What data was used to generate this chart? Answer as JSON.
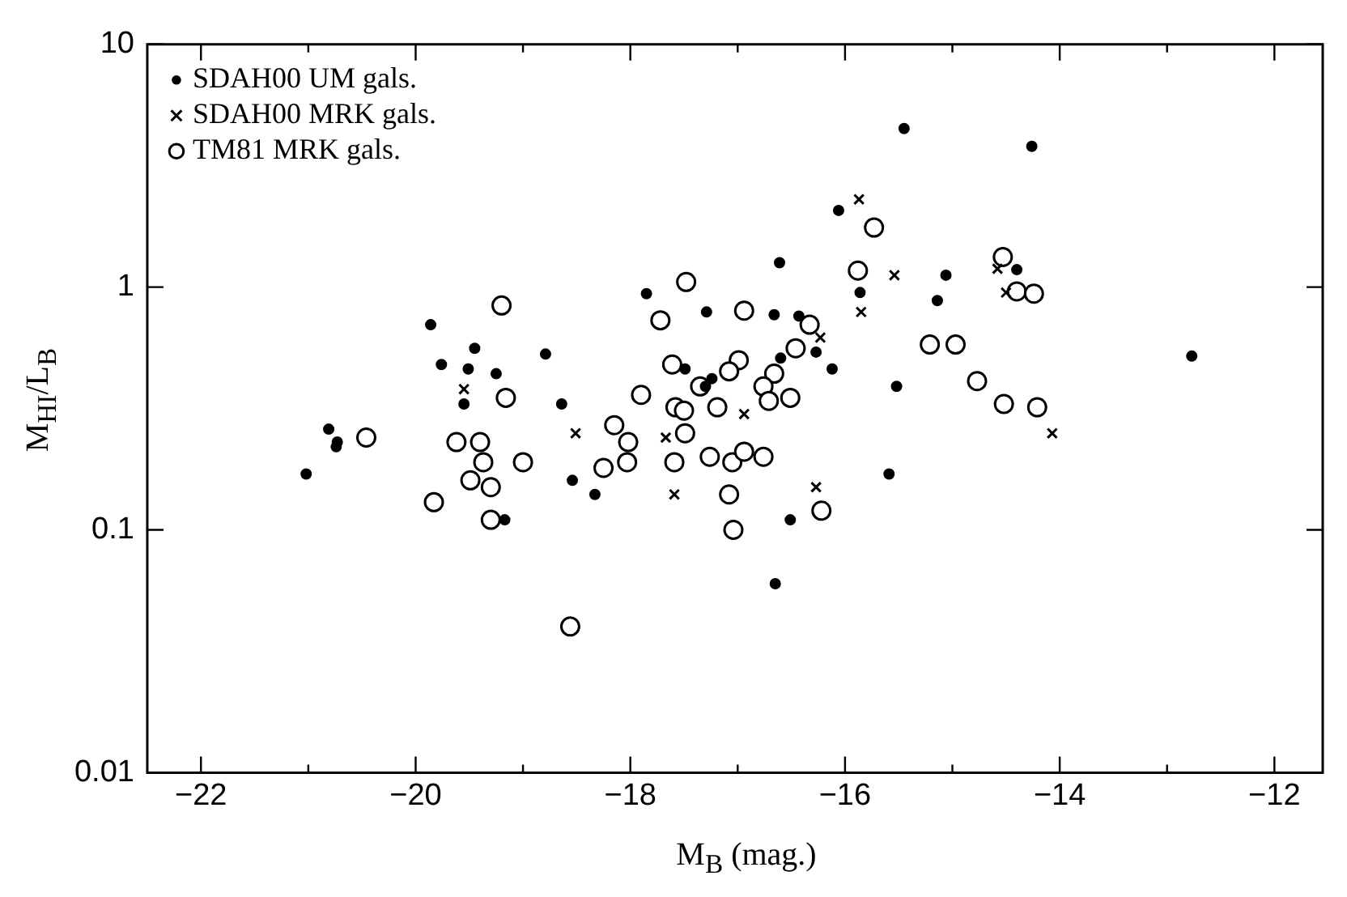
{
  "chart_data": {
    "type": "scatter",
    "xlabel": "M$_{B}$ (mag.)",
    "ylabel": "M$_{HI}$/L$_{B}$",
    "log": "y",
    "grid": false,
    "legend": "top left",
    "xlim": [
      -22.5,
      -11.55
    ],
    "ylim": [
      0.01,
      10
    ],
    "xticks": [
      -22,
      {
        "value": -21,
        "label": null
      },
      -20,
      {
        "value": -19,
        "label": null
      },
      -18,
      {
        "value": -17,
        "label": null
      },
      -16,
      {
        "value": -15,
        "label": null
      },
      -14,
      {
        "value": -13,
        "label": null
      },
      -12
    ],
    "yticks": [
      0.01,
      0.1,
      1,
      10
    ],
    "series": [
      {
        "name": "SDAH00 UM gals.",
        "color": "#000000",
        "marker": "circle",
        "x": [
          -19.86,
          -19.45,
          -19.76,
          -19.51,
          -19.25,
          -18.79,
          -19.55,
          -20.81,
          -20.73,
          -20.74,
          -21.02,
          -19.17,
          -16.61,
          -17.85,
          -17.29,
          -16.66,
          -16.43,
          -15.86,
          -15.06,
          -15.14,
          -16.6,
          -16.27,
          -16.12,
          -17.49,
          -17.24,
          -17.3,
          -18.64,
          -15.52,
          -18.54,
          -18.33,
          -15.59,
          -16.51,
          -16.65,
          -14.26,
          -14.4,
          -12.77,
          -15.45,
          -16.06
        ],
        "values": [
          0.7,
          0.56,
          0.48,
          0.46,
          0.44,
          0.53,
          0.33,
          0.26,
          0.23,
          0.22,
          0.17,
          0.11,
          1.26,
          0.94,
          0.79,
          0.77,
          0.76,
          0.95,
          1.12,
          0.88,
          0.51,
          0.54,
          0.46,
          0.46,
          0.42,
          0.39,
          0.33,
          0.39,
          0.16,
          0.14,
          0.17,
          0.11,
          0.06,
          3.8,
          1.18,
          0.52,
          4.5,
          2.07
        ]
      },
      {
        "name": "SDAH00 MRK gals.",
        "color": "#000000",
        "marker": "cross",
        "x": [
          -19.55,
          -15.54,
          -15.85,
          -16.23,
          -16.94,
          -18.51,
          -17.67,
          -17.59,
          -16.27,
          -14.58,
          -14.5,
          -14.07,
          -15.87
        ],
        "values": [
          0.38,
          1.12,
          0.79,
          0.62,
          0.3,
          0.25,
          0.24,
          0.14,
          0.15,
          1.19,
          0.95,
          0.25,
          2.3
        ]
      },
      {
        "name": "TM81 MRK gals.",
        "color": "#000000",
        "marker": "circle",
        "x": [
          -19.2,
          -19.16,
          -20.46,
          -19.62,
          -19.4,
          -19.37,
          -19.0,
          -19.49,
          -19.3,
          -19.83,
          -19.3,
          -15.88,
          -17.48,
          -17.72,
          -16.94,
          -16.33,
          -15.21,
          -16.46,
          -17.61,
          -16.99,
          -17.08,
          -16.66,
          -16.76,
          -17.35,
          -16.71,
          -16.51,
          -17.9,
          -17.58,
          -17.5,
          -17.19,
          -18.15,
          -18.02,
          -17.49,
          -18.25,
          -18.03,
          -17.59,
          -17.26,
          -17.05,
          -16.94,
          -16.76,
          -17.08,
          -16.22,
          -17.04,
          -18.56,
          -14.53,
          -14.4,
          -14.24,
          -14.97,
          -14.77,
          -14.52,
          -14.21,
          -15.73
        ],
        "values": [
          0.84,
          0.35,
          0.24,
          0.23,
          0.23,
          0.19,
          0.19,
          0.16,
          0.15,
          0.13,
          0.11,
          1.17,
          1.05,
          0.73,
          0.8,
          0.7,
          0.58,
          0.56,
          0.48,
          0.5,
          0.45,
          0.44,
          0.39,
          0.39,
          0.34,
          0.35,
          0.36,
          0.32,
          0.31,
          0.32,
          0.27,
          0.23,
          0.25,
          0.18,
          0.19,
          0.19,
          0.2,
          0.19,
          0.21,
          0.2,
          0.14,
          0.12,
          0.1,
          0.04,
          1.33,
          0.96,
          0.94,
          0.58,
          0.41,
          0.33,
          0.32,
          1.76
        ]
      }
    ]
  }
}
